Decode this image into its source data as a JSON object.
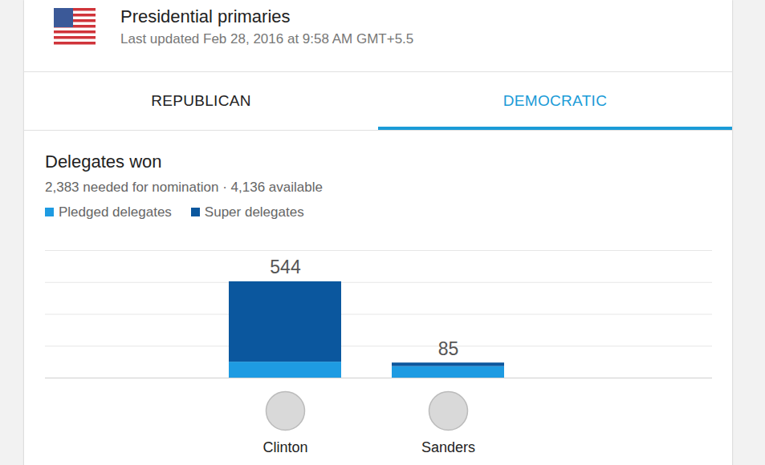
{
  "header": {
    "title": "Presidential primaries",
    "updated": "Last updated Feb 28, 2016 at 9:58 AM GMT+5.5"
  },
  "tabs": [
    {
      "label": "REPUBLICAN",
      "selected": false
    },
    {
      "label": "DEMOCRATIC",
      "selected": true
    }
  ],
  "chart_data": {
    "type": "bar",
    "stacked": true,
    "title": "Delegates won",
    "subtitle": "2,383 needed for nomination · 4,136 available",
    "categories": [
      "Clinton",
      "Sanders"
    ],
    "series": [
      {
        "name": "Pledged delegates",
        "color": "#1e9be2",
        "values": [
          90,
          65
        ]
      },
      {
        "name": "Super delegates",
        "color": "#0b579e",
        "values": [
          454,
          20
        ]
      }
    ],
    "totals": [
      544,
      85
    ],
    "ylim": [
      0,
      720
    ],
    "yticks": [
      0,
      180,
      360,
      540,
      720
    ],
    "grid": true,
    "tick_labels": "x",
    "legend": "top-left"
  }
}
